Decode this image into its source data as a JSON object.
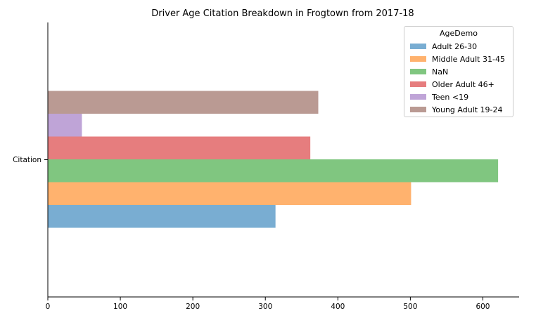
{
  "chart_data": {
    "type": "bar",
    "orientation": "horizontal",
    "title": "Driver Age Citation Breakdown in Frogtown from 2017-18",
    "xlabel": "",
    "ylabel": "",
    "categories": [
      "Citation"
    ],
    "xlim": [
      0,
      650
    ],
    "xticks": [
      "0",
      "100",
      "200",
      "300",
      "400",
      "500",
      "600"
    ],
    "grid": false,
    "legend": {
      "title": "AgeDemo",
      "position": "top-right"
    },
    "series": [
      {
        "name": "Adult 26-30",
        "values": [
          314
        ],
        "color": "#1f77b4"
      },
      {
        "name": "Middle Adult 31-45",
        "values": [
          501
        ],
        "color": "#ff7f0e"
      },
      {
        "name": "NaN",
        "values": [
          621
        ],
        "color": "#2ca02c"
      },
      {
        "name": "Older Adult 46+",
        "values": [
          362
        ],
        "color": "#d62728"
      },
      {
        "name": "Teen <19",
        "values": [
          47
        ],
        "color": "#9467bd"
      },
      {
        "name": "Young Adult 19-24",
        "values": [
          373
        ],
        "color": "#8c564b"
      }
    ]
  }
}
